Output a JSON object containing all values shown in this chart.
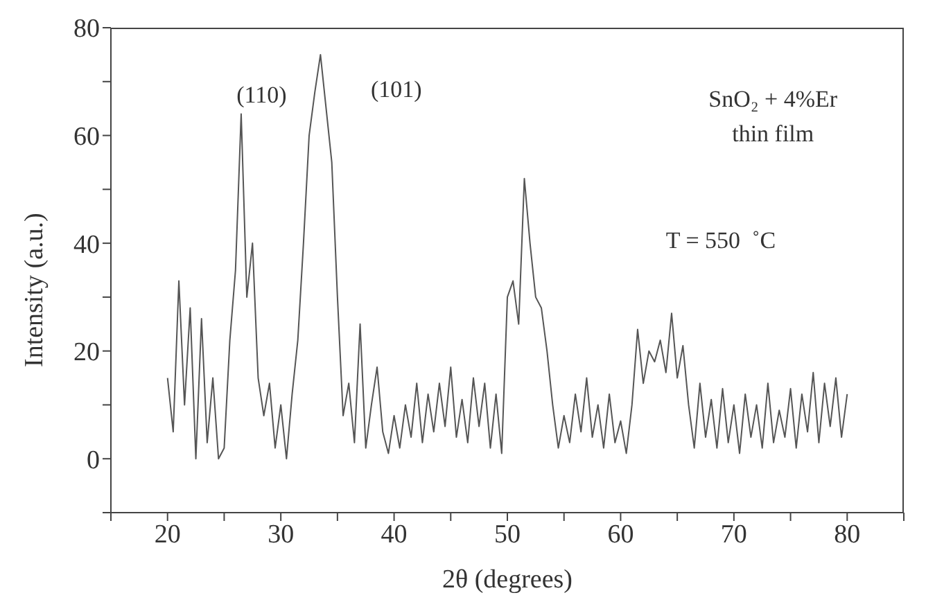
{
  "chart_data": {
    "type": "line",
    "xlabel": "2θ (degrees)",
    "ylabel": "Intensity (a.u.)",
    "x": [
      20,
      20.5,
      21,
      21.5,
      22,
      22.5,
      23,
      23.5,
      24,
      24.5,
      25,
      25.5,
      26,
      26.5,
      27,
      27.5,
      28,
      28.5,
      29,
      29.5,
      30,
      30.5,
      31,
      31.5,
      32,
      32.5,
      33,
      33.5,
      34,
      34.5,
      35,
      35.5,
      36,
      36.5,
      37,
      37.5,
      38,
      38.5,
      39,
      39.5,
      40,
      40.5,
      41,
      41.5,
      42,
      42.5,
      43,
      43.5,
      44,
      44.5,
      45,
      45.5,
      46,
      46.5,
      47,
      47.5,
      48,
      48.5,
      49,
      49.5,
      50,
      50.5,
      51,
      51.5,
      52,
      52.5,
      53,
      53.5,
      54,
      54.5,
      55,
      55.5,
      56,
      56.5,
      57,
      57.5,
      58,
      58.5,
      59,
      59.5,
      60,
      60.5,
      61,
      61.5,
      62,
      62.5,
      63,
      63.5,
      64,
      64.5,
      65,
      65.5,
      66,
      66.5,
      67,
      67.5,
      68,
      68.5,
      69,
      69.5,
      70,
      70.5,
      71,
      71.5,
      72,
      72.5,
      73,
      73.5,
      74,
      74.5,
      75,
      75.5,
      76,
      76.5,
      77,
      77.5,
      78,
      78.5,
      79,
      79.5,
      80
    ],
    "series": [
      {
        "color": "#555555",
        "values": [
          15,
          5,
          33,
          10,
          28,
          0,
          26,
          3,
          15,
          0,
          2,
          22,
          35,
          64,
          30,
          40,
          15,
          8,
          14,
          2,
          10,
          0,
          12,
          22,
          40,
          60,
          68,
          75,
          65,
          55,
          30,
          8,
          14,
          3,
          25,
          2,
          10,
          17,
          5,
          1,
          8,
          2,
          10,
          4,
          14,
          3,
          12,
          5,
          14,
          6,
          17,
          4,
          11,
          3,
          15,
          6,
          14,
          2,
          12,
          1,
          30,
          33,
          25,
          52,
          40,
          30,
          28,
          20,
          10,
          2,
          8,
          3,
          12,
          5,
          15,
          4,
          10,
          2,
          12,
          3,
          7,
          1,
          10,
          24,
          14,
          20,
          18,
          22,
          16,
          27,
          15,
          21,
          10,
          2,
          14,
          4,
          11,
          2,
          13,
          3,
          10,
          1,
          12,
          4,
          10,
          2,
          14,
          3,
          9,
          4,
          13,
          2,
          12,
          5,
          16,
          3,
          14,
          6,
          15,
          4,
          12
        ]
      }
    ],
    "xlim": [
      15,
      85
    ],
    "ylim": [
      -10,
      80
    ],
    "xticks": [
      {
        "value": 15,
        "label": null
      },
      20,
      {
        "value": 25,
        "label": null
      },
      30,
      {
        "value": 35,
        "label": null
      },
      40,
      {
        "value": 45,
        "label": null
      },
      50,
      {
        "value": 55,
        "label": null
      },
      60,
      {
        "value": 65,
        "label": null
      },
      70,
      {
        "value": 75,
        "label": null
      },
      80,
      {
        "value": 85,
        "label": null
      }
    ],
    "yticks": [
      {
        "value": -10,
        "label": null
      },
      0,
      {
        "value": 10,
        "label": null
      },
      20,
      {
        "value": 30,
        "label": null
      },
      40,
      {
        "value": 50,
        "label": null
      },
      60,
      {
        "value": 70,
        "label": null
      },
      80
    ],
    "grid": false,
    "legend": false,
    "marker": "none",
    "line_style": "solid",
    "annotations": [
      "(110)",
      "(101)",
      "SnO₂ + 4%Er",
      "thin film",
      "T = 550  ˚C"
    ]
  }
}
